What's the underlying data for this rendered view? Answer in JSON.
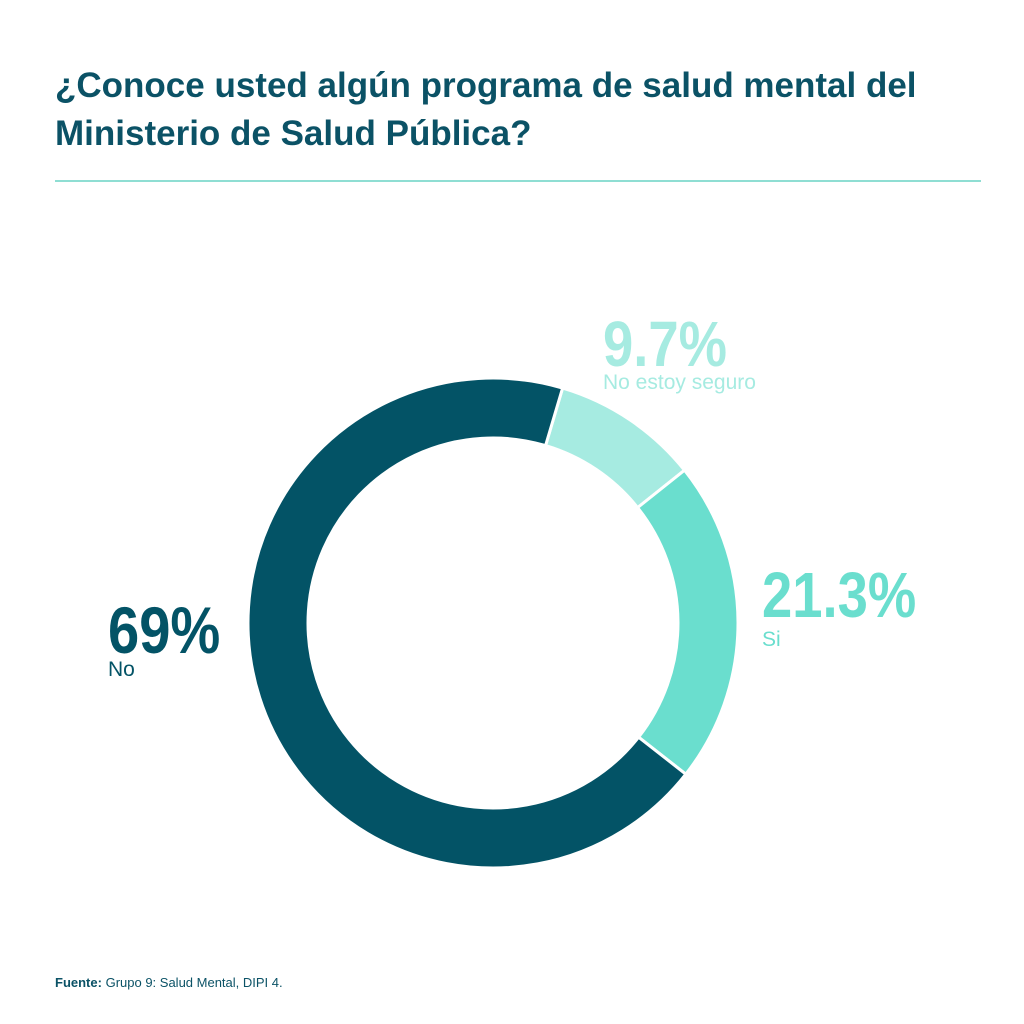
{
  "header": {
    "title": "¿Conoce usted algún programa de salud mental del Ministerio de Salud Pública?"
  },
  "footer": {
    "source_label": "Fuente:",
    "source_text": "Grupo 9: Salud Mental, DIPI 4."
  },
  "chart_data": {
    "type": "pie",
    "donut": true,
    "title": "¿Conoce usted algún programa de salud mental del Ministerio de Salud Pública?",
    "slices": [
      {
        "label": "No estoy seguro",
        "value": 9.7,
        "display": "9.7%",
        "color": "#a6ebe1"
      },
      {
        "label": "Si",
        "value": 21.3,
        "display": "21.3%",
        "color": "#6adece"
      },
      {
        "label": "No",
        "value": 69,
        "display": "69%",
        "color": "#035366"
      }
    ]
  }
}
